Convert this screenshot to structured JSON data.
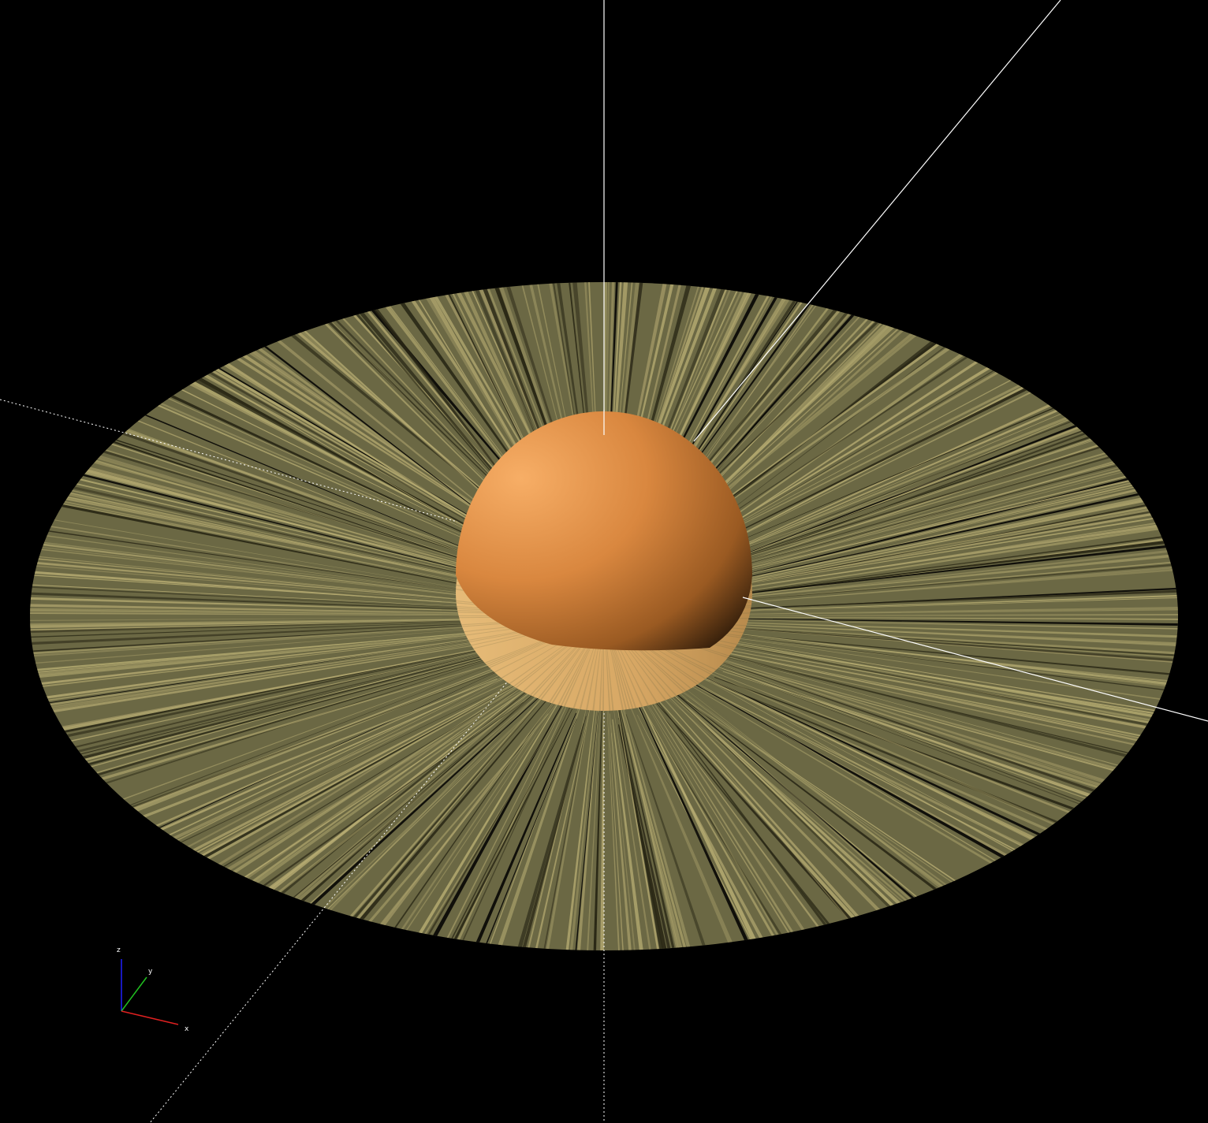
{
  "viewport": {
    "background": "#000000",
    "scene": {
      "ring_base_color": "#6b6844",
      "ring_light_color": "#b7ac72",
      "ring_dark_color": "#2a2816",
      "sphere_color": "#e9944a",
      "sphere_highlight": "#f7ae66",
      "sphere_shadow": "#3a220c",
      "sphere_underside_color": "#e6bb78",
      "axis_color": "#ffffff"
    },
    "axis_gizmo": {
      "labels": {
        "z": "z",
        "y": "y",
        "x": "x"
      },
      "colors": {
        "z": "#2020ff",
        "y": "#20c020",
        "x": "#e02020"
      }
    }
  }
}
